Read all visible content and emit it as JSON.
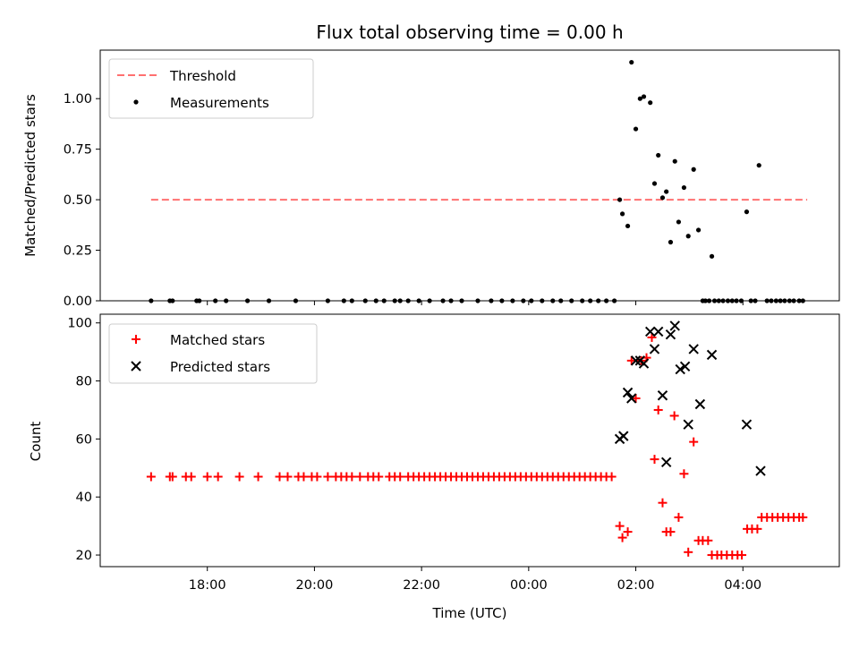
{
  "chart_data": [
    {
      "type": "scatter",
      "title": "Flux total observing time = 0.00 h",
      "xlabel": "",
      "ylabel": "Matched/Predicted stars",
      "ylim": [
        0,
        1.24
      ],
      "yticks": [
        0.0,
        0.25,
        0.5,
        0.75,
        1.0
      ],
      "ytick_labels": [
        "0.00",
        "0.25",
        "0.50",
        "0.75",
        "1.00"
      ],
      "legend": {
        "location": "upper-left",
        "entries": [
          "Threshold",
          "Measurements"
        ]
      },
      "threshold": {
        "name": "Threshold",
        "y": 0.5,
        "x_range": [
          -7.05,
          5.2
        ],
        "color": "#ff7070",
        "style": "dashed"
      },
      "series": [
        {
          "name": "Measurements",
          "color": "#000000",
          "marker": "dot",
          "x": [
            -7.05,
            -6.7,
            -6.65,
            -6.2,
            -6.15,
            -5.85,
            -5.65,
            -5.25,
            -4.85,
            -4.35,
            -3.75,
            -3.45,
            -3.3,
            -3.05,
            -2.85,
            -2.7,
            -2.5,
            -2.4,
            -2.25,
            -2.05,
            -1.85,
            -1.6,
            -1.45,
            -1.25,
            -0.95,
            -0.7,
            -0.5,
            -0.3,
            -0.1,
            0.05,
            0.25,
            0.45,
            0.6,
            0.8,
            1.0,
            1.15,
            1.3,
            1.45,
            1.6,
            1.7,
            1.75,
            1.85,
            1.92,
            2.0,
            2.08,
            2.15,
            2.27,
            2.35,
            2.42,
            2.5,
            2.57,
            2.65,
            2.73,
            2.8,
            2.9,
            2.98,
            3.08,
            3.17,
            3.3,
            3.42,
            4.07,
            4.3,
            3.25,
            3.37,
            3.47,
            3.55,
            3.63,
            3.72,
            3.8,
            3.88,
            3.97,
            4.15,
            4.23,
            4.45,
            4.53,
            4.62,
            4.7,
            4.78,
            4.87,
            4.95,
            5.05,
            5.12
          ],
          "y": [
            0,
            0,
            0,
            0,
            0,
            0,
            0,
            0,
            0,
            0,
            0,
            0,
            0,
            0,
            0,
            0,
            0,
            0,
            0,
            0,
            0,
            0,
            0,
            0,
            0,
            0,
            0,
            0,
            0,
            0,
            0,
            0,
            0,
            0,
            0,
            0,
            0,
            0,
            0,
            0.5,
            0.43,
            0.37,
            1.18,
            0.85,
            1.0,
            1.01,
            0.98,
            0.58,
            0.72,
            0.51,
            0.54,
            0.29,
            0.69,
            0.39,
            0.56,
            0.32,
            0.65,
            0.35,
            0.0,
            0.22,
            0.44,
            0.67,
            0,
            0,
            0,
            0,
            0,
            0,
            0,
            0,
            0,
            0,
            0,
            0,
            0,
            0,
            0,
            0,
            0,
            0,
            0,
            0
          ]
        }
      ]
    },
    {
      "type": "scatter",
      "title": "",
      "xlabel": "Time (UTC)",
      "ylabel": "Count",
      "xlim": [
        -8.0,
        5.8
      ],
      "ylim": [
        16,
        103
      ],
      "xticks": [
        -6,
        -4,
        -2,
        0,
        2,
        4
      ],
      "xtick_labels": [
        "18:00",
        "20:00",
        "22:00",
        "00:00",
        "02:00",
        "04:00"
      ],
      "yticks": [
        20,
        40,
        60,
        80,
        100
      ],
      "ytick_labels": [
        "20",
        "40",
        "60",
        "80",
        "100"
      ],
      "legend": {
        "location": "upper-left",
        "entries": [
          "Matched stars",
          "Predicted stars"
        ]
      },
      "series": [
        {
          "name": "Matched stars",
          "color": "#ff0000",
          "marker": "plus",
          "x": [
            -7.05,
            -6.7,
            -6.65,
            -6.4,
            -6.3,
            -6.0,
            -5.8,
            -5.4,
            -5.05,
            -4.65,
            -4.5,
            -4.3,
            -4.2,
            -4.05,
            -3.95,
            -3.75,
            -3.6,
            -3.5,
            -3.4,
            -3.3,
            -3.15,
            -3.0,
            -2.9,
            -2.8,
            -2.6,
            -2.5,
            -2.4,
            -2.25,
            -2.15,
            -2.05,
            -1.95,
            -1.85,
            -1.75,
            -1.65,
            -1.55,
            -1.45,
            -1.35,
            -1.25,
            -1.15,
            -1.05,
            -0.95,
            -0.85,
            -0.75,
            -0.65,
            -0.55,
            -0.45,
            -0.35,
            -0.25,
            -0.15,
            -0.05,
            0.05,
            0.15,
            0.25,
            0.35,
            0.45,
            0.55,
            0.65,
            0.75,
            0.85,
            0.95,
            1.05,
            1.15,
            1.25,
            1.35,
            1.45,
            1.55,
            1.7,
            1.75,
            1.85,
            1.92,
            2.0,
            2.1,
            2.2,
            2.3,
            2.35,
            2.42,
            2.5,
            2.57,
            2.65,
            2.72,
            2.8,
            2.9,
            2.98,
            3.08,
            3.17,
            3.25,
            3.35,
            3.42,
            3.52,
            3.6,
            3.7,
            3.8,
            3.9,
            3.98,
            4.08,
            4.17,
            4.27,
            4.35,
            4.45,
            4.55,
            4.65,
            4.75,
            4.85,
            4.95,
            5.05,
            5.12
          ],
          "y": [
            47,
            47,
            47,
            47,
            47,
            47,
            47,
            47,
            47,
            47,
            47,
            47,
            47,
            47,
            47,
            47,
            47,
            47,
            47,
            47,
            47,
            47,
            47,
            47,
            47,
            47,
            47,
            47,
            47,
            47,
            47,
            47,
            47,
            47,
            47,
            47,
            47,
            47,
            47,
            47,
            47,
            47,
            47,
            47,
            47,
            47,
            47,
            47,
            47,
            47,
            47,
            47,
            47,
            47,
            47,
            47,
            47,
            47,
            47,
            47,
            47,
            47,
            47,
            47,
            47,
            47,
            30,
            26,
            28,
            87,
            74,
            87,
            88,
            95,
            53,
            70,
            38,
            28,
            28,
            68,
            33,
            48,
            21,
            59,
            25,
            25,
            25,
            20,
            20,
            20,
            20,
            20,
            20,
            20,
            29,
            29,
            29,
            33,
            33,
            33,
            33,
            33,
            33,
            33,
            33,
            33
          ]
        },
        {
          "name": "Predicted stars",
          "color": "#000000",
          "marker": "x",
          "x": [
            1.7,
            1.77,
            1.85,
            1.92,
            2.0,
            2.08,
            2.15,
            2.27,
            2.35,
            2.42,
            2.5,
            2.57,
            2.65,
            2.73,
            2.83,
            2.92,
            2.98,
            3.08,
            3.2,
            3.42,
            4.07,
            4.33
          ],
          "y": [
            60,
            61,
            76,
            74,
            87,
            87,
            86,
            97,
            91,
            97,
            75,
            52,
            96,
            99,
            84,
            85,
            65,
            91,
            72,
            89,
            65,
            49
          ]
        }
      ]
    }
  ]
}
